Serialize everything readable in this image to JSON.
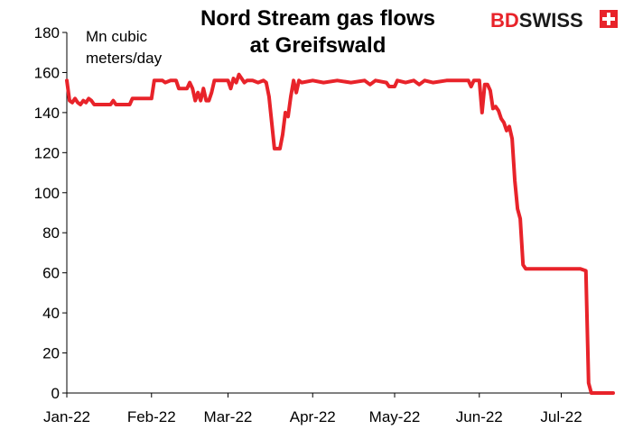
{
  "brand": {
    "bd": "BD",
    "swiss": "SWISS",
    "color_bd": "#e8232a",
    "color_swiss": "#1a1a1a"
  },
  "chart_data": {
    "type": "line",
    "title_lines": [
      "Nord Stream gas flows",
      "at Greifswald"
    ],
    "unit_lines": [
      "Mn cubic",
      "meters/day"
    ],
    "ylim": [
      0,
      180
    ],
    "yticks": [
      0,
      20,
      40,
      60,
      80,
      100,
      120,
      140,
      160,
      180
    ],
    "xlim": [
      "2022-01-01",
      "2022-07-20"
    ],
    "xticks": [
      {
        "date": "2022-01-01",
        "label": "Jan-22"
      },
      {
        "date": "2022-02-01",
        "label": "Feb-22"
      },
      {
        "date": "2022-03-01",
        "label": "Mar-22"
      },
      {
        "date": "2022-04-01",
        "label": "Apr-22"
      },
      {
        "date": "2022-05-01",
        "label": "May-22"
      },
      {
        "date": "2022-06-01",
        "label": "Jun-22"
      },
      {
        "date": "2022-07-01",
        "label": "Jul-22"
      }
    ],
    "line_color": "#e8232a",
    "grid": false,
    "series": [
      {
        "points": [
          [
            "2022-01-01",
            156
          ],
          [
            "2022-01-02",
            146
          ],
          [
            "2022-01-03",
            145
          ],
          [
            "2022-01-04",
            147
          ],
          [
            "2022-01-05",
            145
          ],
          [
            "2022-01-06",
            144
          ],
          [
            "2022-01-07",
            146
          ],
          [
            "2022-01-08",
            145
          ],
          [
            "2022-01-09",
            147
          ],
          [
            "2022-01-10",
            146
          ],
          [
            "2022-01-11",
            144
          ],
          [
            "2022-01-13",
            144
          ],
          [
            "2022-01-17",
            144
          ],
          [
            "2022-01-18",
            146
          ],
          [
            "2022-01-19",
            144
          ],
          [
            "2022-01-24",
            144
          ],
          [
            "2022-01-25",
            147
          ],
          [
            "2022-01-31",
            147
          ],
          [
            "2022-02-01",
            147
          ],
          [
            "2022-02-02",
            156
          ],
          [
            "2022-02-05",
            156
          ],
          [
            "2022-02-06",
            155
          ],
          [
            "2022-02-08",
            156
          ],
          [
            "2022-02-10",
            156
          ],
          [
            "2022-02-11",
            152
          ],
          [
            "2022-02-14",
            152
          ],
          [
            "2022-02-15",
            155
          ],
          [
            "2022-02-16",
            152
          ],
          [
            "2022-02-17",
            146
          ],
          [
            "2022-02-18",
            150
          ],
          [
            "2022-02-19",
            146
          ],
          [
            "2022-02-20",
            152
          ],
          [
            "2022-02-21",
            146
          ],
          [
            "2022-02-22",
            146
          ],
          [
            "2022-02-23",
            150
          ],
          [
            "2022-02-24",
            156
          ],
          [
            "2022-02-26",
            156
          ],
          [
            "2022-02-28",
            156
          ],
          [
            "2022-03-01",
            156
          ],
          [
            "2022-03-02",
            152
          ],
          [
            "2022-03-03",
            157
          ],
          [
            "2022-03-04",
            155
          ],
          [
            "2022-03-05",
            159
          ],
          [
            "2022-03-06",
            157
          ],
          [
            "2022-03-07",
            155
          ],
          [
            "2022-03-08",
            156
          ],
          [
            "2022-03-10",
            156
          ],
          [
            "2022-03-12",
            155
          ],
          [
            "2022-03-14",
            156
          ],
          [
            "2022-03-15",
            155
          ],
          [
            "2022-03-16",
            148
          ],
          [
            "2022-03-17",
            135
          ],
          [
            "2022-03-18",
            122
          ],
          [
            "2022-03-20",
            122
          ],
          [
            "2022-03-21",
            129
          ],
          [
            "2022-03-22",
            140
          ],
          [
            "2022-03-23",
            138
          ],
          [
            "2022-03-24",
            148
          ],
          [
            "2022-03-25",
            156
          ],
          [
            "2022-03-26",
            150
          ],
          [
            "2022-03-27",
            156
          ],
          [
            "2022-03-28",
            155
          ],
          [
            "2022-04-01",
            156
          ],
          [
            "2022-04-05",
            155
          ],
          [
            "2022-04-10",
            156
          ],
          [
            "2022-04-15",
            155
          ],
          [
            "2022-04-20",
            156
          ],
          [
            "2022-04-22",
            154
          ],
          [
            "2022-04-24",
            156
          ],
          [
            "2022-04-28",
            155
          ],
          [
            "2022-04-29",
            153
          ],
          [
            "2022-05-01",
            153
          ],
          [
            "2022-05-02",
            156
          ],
          [
            "2022-05-05",
            155
          ],
          [
            "2022-05-08",
            156
          ],
          [
            "2022-05-10",
            154
          ],
          [
            "2022-05-12",
            156
          ],
          [
            "2022-05-15",
            155
          ],
          [
            "2022-05-20",
            156
          ],
          [
            "2022-05-25",
            156
          ],
          [
            "2022-05-28",
            156
          ],
          [
            "2022-05-29",
            153
          ],
          [
            "2022-05-30",
            156
          ],
          [
            "2022-06-01",
            156
          ],
          [
            "2022-06-02",
            140
          ],
          [
            "2022-06-03",
            154
          ],
          [
            "2022-06-04",
            154
          ],
          [
            "2022-06-05",
            151
          ],
          [
            "2022-06-06",
            142
          ],
          [
            "2022-06-07",
            143
          ],
          [
            "2022-06-08",
            141
          ],
          [
            "2022-06-09",
            137
          ],
          [
            "2022-06-10",
            135
          ],
          [
            "2022-06-11",
            131
          ],
          [
            "2022-06-12",
            133
          ],
          [
            "2022-06-13",
            127
          ],
          [
            "2022-06-14",
            106
          ],
          [
            "2022-06-15",
            92
          ],
          [
            "2022-06-16",
            87
          ],
          [
            "2022-06-17",
            64
          ],
          [
            "2022-06-18",
            62
          ],
          [
            "2022-06-20",
            62
          ],
          [
            "2022-06-25",
            62
          ],
          [
            "2022-06-30",
            62
          ],
          [
            "2022-07-01",
            62
          ],
          [
            "2022-07-05",
            62
          ],
          [
            "2022-07-08",
            62
          ],
          [
            "2022-07-10",
            61
          ],
          [
            "2022-07-11",
            5
          ],
          [
            "2022-07-12",
            0
          ],
          [
            "2022-07-20",
            0
          ]
        ]
      }
    ]
  }
}
